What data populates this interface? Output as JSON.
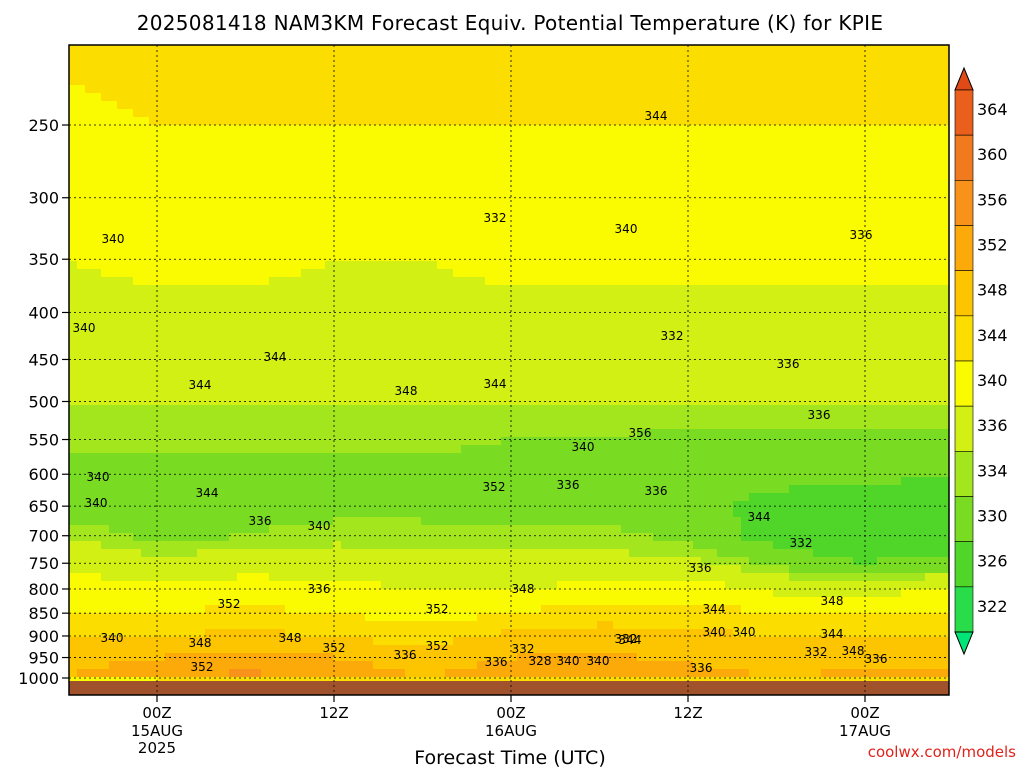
{
  "title": "2025081418 NAM3KM Forecast Equiv. Potential Temperature (K) for KPIE",
  "xlabel": "Forecast Time (UTC)",
  "credit": "coolwx.com/models",
  "colors": {
    "frame": "#000000",
    "ground": "#a0522d",
    "levels": [
      "#00e676",
      "#28dc4a",
      "#4fd629",
      "#79dc23",
      "#a3e61e",
      "#d2f014",
      "#fafa00",
      "#fbde00",
      "#fdc400",
      "#fcaa0a",
      "#f9921a",
      "#f27a1e",
      "#ea5f1c",
      "#e04a16"
    ]
  },
  "chart_data": {
    "type": "heatmap",
    "title": "2025081418 NAM3KM Forecast Equiv. Potential Temperature (K) for KPIE",
    "xlabel": "Forecast Time (UTC)",
    "ylabel": "",
    "y_scale": "pressure (log), inverted",
    "yticks": [
      "250",
      "300",
      "350",
      "400",
      "450",
      "500",
      "550",
      "600",
      "650",
      "700",
      "750",
      "800",
      "850",
      "900",
      "950",
      "1000"
    ],
    "xticks": [
      {
        "hour": "00Z",
        "date": "15AUG",
        "year": "2025"
      },
      {
        "hour": "12Z",
        "date": "",
        "year": ""
      },
      {
        "hour": "00Z",
        "date": "16AUG",
        "year": ""
      },
      {
        "hour": "12Z",
        "date": "",
        "year": ""
      },
      {
        "hour": "00Z",
        "date": "17AUG",
        "year": ""
      }
    ],
    "colorbar_levels": [
      "322",
      "326",
      "330",
      "334",
      "336",
      "340",
      "344",
      "348",
      "352",
      "356",
      "360",
      "364"
    ],
    "profile_columns": [
      "hour",
      "p1000",
      "p950",
      "p900",
      "p850",
      "p800",
      "p750",
      "p700",
      "p650",
      "p600",
      "p550",
      "p500",
      "p450",
      "p400",
      "p350",
      "p300",
      "p250",
      "p200"
    ],
    "profiles": [
      [
        -6,
        352,
        350,
        348,
        344,
        342,
        339,
        336,
        332,
        333,
        335,
        336,
        337,
        339,
        340,
        341,
        343,
        345
      ],
      [
        0,
        356,
        352,
        348,
        344,
        341,
        337,
        333,
        332,
        333,
        335,
        336,
        337,
        339,
        341,
        342,
        344,
        346
      ],
      [
        6,
        357,
        354,
        349,
        345,
        342,
        338,
        334,
        333,
        333,
        335,
        336,
        337,
        339,
        341,
        342,
        344,
        346
      ],
      [
        12,
        355,
        352,
        348,
        344,
        341,
        338,
        335,
        333,
        333,
        335,
        336,
        337,
        339,
        340,
        342,
        344,
        345
      ],
      [
        18,
        352,
        350,
        346,
        342,
        340,
        337,
        335,
        333,
        333,
        335,
        336,
        337,
        339,
        340,
        342,
        344,
        345
      ],
      [
        24,
        354,
        352,
        349,
        344,
        340,
        337,
        335,
        332,
        332,
        334,
        336,
        338,
        339,
        341,
        342,
        344,
        346
      ],
      [
        30,
        356,
        353,
        350,
        346,
        341,
        337,
        335,
        333,
        332,
        334,
        336,
        338,
        339,
        341,
        342,
        344,
        345
      ],
      [
        36,
        354,
        351,
        349,
        346,
        342,
        337,
        333,
        331,
        331,
        333,
        336,
        337,
        339,
        341,
        342,
        344,
        345
      ],
      [
        42,
        352,
        350,
        348,
        344,
        339,
        333,
        328,
        329,
        331,
        333,
        336,
        337,
        339,
        341,
        342,
        344,
        345
      ],
      [
        48,
        353,
        351,
        348,
        344,
        338,
        330,
        326,
        328,
        331,
        333,
        336,
        337,
        339,
        341,
        342,
        344,
        345
      ],
      [
        54,
        353,
        351,
        348,
        344,
        341,
        332,
        326,
        327,
        330,
        333,
        336,
        337,
        339,
        341,
        342,
        344,
        346
      ]
    ],
    "contour_labels": [
      "340",
      "340",
      "344",
      "336",
      "340",
      "332",
      "344",
      "332",
      "336",
      "336",
      "344",
      "348",
      "344",
      "356",
      "340",
      "340",
      "344",
      "352",
      "336",
      "336",
      "336",
      "340",
      "344",
      "332",
      "336",
      "336",
      "352",
      "348",
      "352",
      "344",
      "348",
      "340",
      "348",
      "332",
      "340",
      "340",
      "344",
      "348",
      "352",
      "336",
      "352",
      "332",
      "336",
      "328",
      "340",
      "340",
      "336",
      "332",
      "336",
      "352",
      "348",
      "344",
      "340"
    ]
  }
}
